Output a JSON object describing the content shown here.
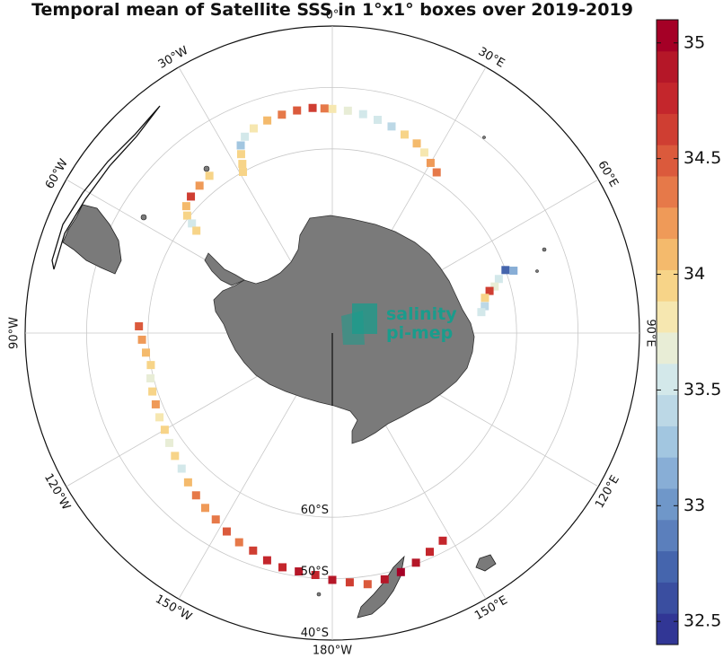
{
  "title": "Temporal mean of Satellite SSS in 1°x1° boxes over 2019-2019",
  "map": {
    "projection": "south-polar-stereographic",
    "longitude_labels": [
      {
        "deg": 0,
        "text": "0°"
      },
      {
        "deg": 30,
        "text": "30°E"
      },
      {
        "deg": 60,
        "text": "60°E"
      },
      {
        "deg": 90,
        "text": "90°E"
      },
      {
        "deg": 120,
        "text": "120°E"
      },
      {
        "deg": 150,
        "text": "150°E"
      },
      {
        "deg": 180,
        "text": "180°W"
      },
      {
        "deg": -150,
        "text": "150°W"
      },
      {
        "deg": -120,
        "text": "120°W"
      },
      {
        "deg": -90,
        "text": "90°W"
      },
      {
        "deg": -60,
        "text": "60°W"
      },
      {
        "deg": -30,
        "text": "30°W"
      }
    ],
    "latitude_labels": [
      {
        "lat": -60,
        "text": "60°S"
      },
      {
        "lat": -50,
        "text": "50°S"
      },
      {
        "lat": -40,
        "text": "40°S"
      }
    ],
    "logo": {
      "line1": "salinity",
      "line2": "pi-mep",
      "color": "#1a9c8c"
    },
    "land_color": "#7a7a7a",
    "grid_color": "#c8c8c8"
  },
  "colorbar": {
    "min": 32.4,
    "max": 35.1,
    "ticks": [
      "32.5",
      "33",
      "33.5",
      "34",
      "34.5",
      "35"
    ],
    "colors": [
      "#313695",
      "#3a4ea0",
      "#4565ad",
      "#5b7fbc",
      "#6f97c9",
      "#88aed6",
      "#a2c6e0",
      "#bcd8e6",
      "#d3e8ea",
      "#e8edd6",
      "#f6e7b0",
      "#f7d488",
      "#f4ba6c",
      "#ef9a58",
      "#e67949",
      "#db5a3c",
      "#cf3e32",
      "#c4262c",
      "#b51728",
      "#a50026"
    ]
  },
  "chart_data": {
    "type": "heatmap",
    "title": "Temporal mean of Satellite SSS in 1°x1° boxes over 2019-2019",
    "variable": "SSS",
    "color_range": [
      32.4,
      35.1
    ],
    "colorbar_ticks": [
      32.5,
      33,
      33.5,
      34,
      34.5,
      35
    ],
    "tracks": [
      {
        "name": "track-0E-30E",
        "points": [
          [
            0,
            -53.5,
            33.8
          ],
          [
            4,
            -53.7,
            33.7
          ],
          [
            8,
            -54,
            33.5
          ],
          [
            12,
            -54.5,
            33.6
          ],
          [
            16,
            -55,
            33.4
          ],
          [
            20,
            -55.6,
            33.9
          ],
          [
            24,
            -56.2,
            34.1
          ],
          [
            27,
            -57,
            33.8
          ],
          [
            30,
            -58,
            34.2
          ],
          [
            33,
            -58.8,
            34.4
          ]
        ]
      },
      {
        "name": "track-30W-0",
        "points": [
          [
            -2,
            -53.4,
            34.4
          ],
          [
            -5,
            -53.2,
            34.6
          ],
          [
            -9,
            -53.3,
            34.5
          ],
          [
            -13,
            -53.5,
            34.3
          ],
          [
            -17,
            -53.8,
            34.1
          ],
          [
            -21,
            -54.3,
            33.8
          ],
          [
            -24,
            -55,
            33.5
          ],
          [
            -26,
            -56,
            33.3
          ],
          [
            -27,
            -57.3,
            33.9
          ],
          [
            -28,
            -58.8,
            34
          ],
          [
            -29,
            -60,
            33.9
          ]
        ]
      },
      {
        "name": "track-60W-30W",
        "points": [
          [
            -38,
            -57.5,
            33.9
          ],
          [
            -42,
            -57.7,
            34.2
          ],
          [
            -46,
            -58,
            34.6
          ],
          [
            -49,
            -58.5,
            34.1
          ],
          [
            -51,
            -59.6,
            33.9
          ],
          [
            -52,
            -61,
            33.5
          ],
          [
            -53,
            -62.3,
            34
          ]
        ]
      },
      {
        "name": "track-60E",
        "points": [
          [
            70,
            -60,
            32.7
          ],
          [
            71,
            -58.8,
            33.2
          ],
          [
            72,
            -61.5,
            33.6
          ],
          [
            74,
            -62.5,
            33.7
          ],
          [
            75,
            -63.5,
            34.6
          ],
          [
            77,
            -64.5,
            33.9
          ],
          [
            80,
            -64.8,
            33.4
          ],
          [
            82,
            -65.5,
            33.6
          ]
        ]
      },
      {
        "name": "track-90W-180",
        "points": [
          [
            -88,
            -58.5,
            34.5
          ],
          [
            -92,
            -59,
            34.2
          ],
          [
            -96,
            -59.5,
            34.1
          ],
          [
            -100,
            -60,
            33.9
          ],
          [
            -104,
            -59.5,
            33.7
          ],
          [
            -108,
            -59.2,
            33.9
          ],
          [
            -112,
            -59,
            34.2
          ],
          [
            -116,
            -58.7,
            33.8
          ],
          [
            -120,
            -58.5,
            34
          ],
          [
            -124,
            -58,
            33.7
          ],
          [
            -128,
            -57.5,
            33.9
          ],
          [
            -132,
            -57,
            33.6
          ],
          [
            -136,
            -56.2,
            34.1
          ],
          [
            -140,
            -55.5,
            34.3
          ],
          [
            -144,
            -54.8,
            34.2
          ],
          [
            -148,
            -54.2,
            34.4
          ],
          [
            -152,
            -53.4,
            34.5
          ],
          [
            -156,
            -52.7,
            34.4
          ],
          [
            -160,
            -52.3,
            34.6
          ],
          [
            -164,
            -51.5,
            34.7
          ],
          [
            -168,
            -51,
            34.8
          ],
          [
            -172,
            -50.8,
            34.9
          ],
          [
            -176,
            -50.5,
            34.8
          ],
          [
            180,
            -49.8,
            34.9
          ],
          [
            176,
            -49.3,
            34.6
          ],
          [
            172,
            -48.7,
            34.5
          ],
          [
            168,
            -49,
            34.9
          ],
          [
            164,
            -49.5,
            35
          ],
          [
            160,
            -50.2,
            34.9
          ],
          [
            156,
            -51,
            34.8
          ],
          [
            152,
            -51.7,
            34.7
          ]
        ]
      }
    ]
  }
}
